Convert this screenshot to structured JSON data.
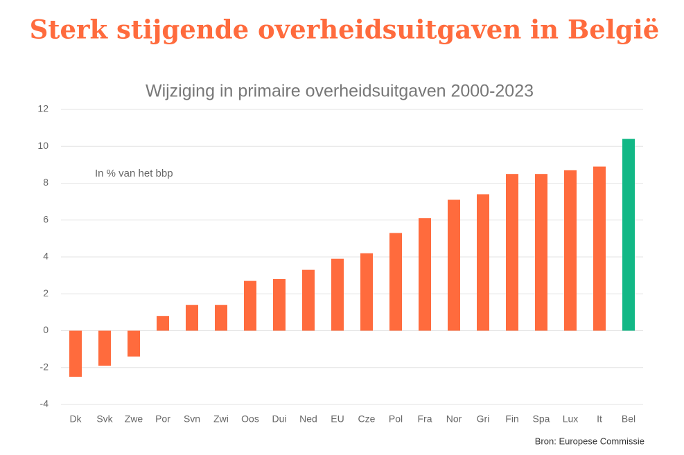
{
  "chart_data": {
    "type": "bar",
    "title": "Sterk stijgende overheidsuitgaven in België",
    "subtitle": "Wijziging in primaire overheidsuitgaven 2000-2023",
    "annotation": "In % van het bbp",
    "source": "Bron: Europese Commissie",
    "categories": [
      "Dk",
      "Svk",
      "Zwe",
      "Por",
      "Svn",
      "Zwi",
      "Oos",
      "Dui",
      "Ned",
      "EU",
      "Cze",
      "Pol",
      "Fra",
      "Nor",
      "Gri",
      "Fin",
      "Spa",
      "Lux",
      "It",
      "Bel"
    ],
    "values": [
      -2.5,
      -1.9,
      -1.4,
      0.8,
      1.4,
      1.4,
      2.7,
      2.8,
      3.3,
      3.9,
      4.2,
      5.3,
      6.1,
      7.1,
      7.4,
      8.5,
      8.5,
      8.7,
      8.9,
      10.4
    ],
    "colors": [
      "#ff6b3d",
      "#ff6b3d",
      "#ff6b3d",
      "#ff6b3d",
      "#ff6b3d",
      "#ff6b3d",
      "#ff6b3d",
      "#ff6b3d",
      "#ff6b3d",
      "#ff6b3d",
      "#ff6b3d",
      "#ff6b3d",
      "#ff6b3d",
      "#ff6b3d",
      "#ff6b3d",
      "#ff6b3d",
      "#ff6b3d",
      "#ff6b3d",
      "#ff6b3d",
      "#12b886"
    ],
    "ylim": [
      -4,
      12
    ],
    "yticks": [
      -4,
      -2,
      0,
      2,
      4,
      6,
      8,
      10,
      12
    ],
    "grid": true
  }
}
